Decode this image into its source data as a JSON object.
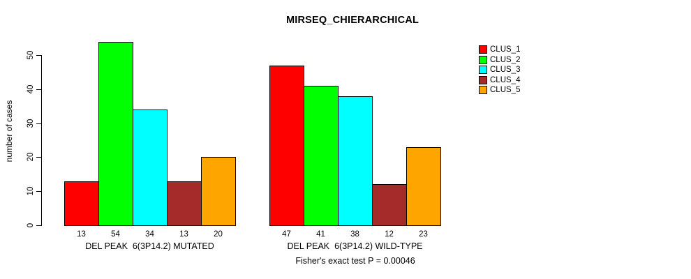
{
  "title": "MIRSEQ_CHIERARCHICAL",
  "subtitle": "Fisher's exact test P = 0.00046",
  "ylabel": "number of cases",
  "chart_data": {
    "type": "bar",
    "title": "MIRSEQ_CHIERARCHICAL",
    "xlabel": "",
    "ylabel": "number of cases",
    "ylim": [
      0,
      50
    ],
    "yticks": [
      0,
      10,
      20,
      30,
      40,
      50
    ],
    "grid": false,
    "legend_position": "topright-outside",
    "series_names": [
      "CLUS_1",
      "CLUS_2",
      "CLUS_3",
      "CLUS_4",
      "CLUS_5"
    ],
    "colors": [
      "#FF0000",
      "#00FF00",
      "#00FFFF",
      "#A52A2A",
      "#FFA500"
    ],
    "bar_border_color": "#000000",
    "groups": [
      {
        "label": "DEL PEAK  6(3P14.2) MUTATED",
        "values": [
          13,
          54,
          34,
          13,
          20
        ]
      },
      {
        "label": "DEL PEAK  6(3P14.2) WILD-TYPE",
        "values": [
          47,
          41,
          38,
          12,
          23
        ]
      }
    ],
    "annotation": "Fisher's exact test P = 0.00046"
  },
  "legend": {
    "items": [
      {
        "label": "CLUS_1",
        "color": "#FF0000"
      },
      {
        "label": "CLUS_2",
        "color": "#00FF00"
      },
      {
        "label": "CLUS_3",
        "color": "#00FFFF"
      },
      {
        "label": "CLUS_4",
        "color": "#A52A2A"
      },
      {
        "label": "CLUS_5",
        "color": "#FFA500"
      }
    ]
  }
}
